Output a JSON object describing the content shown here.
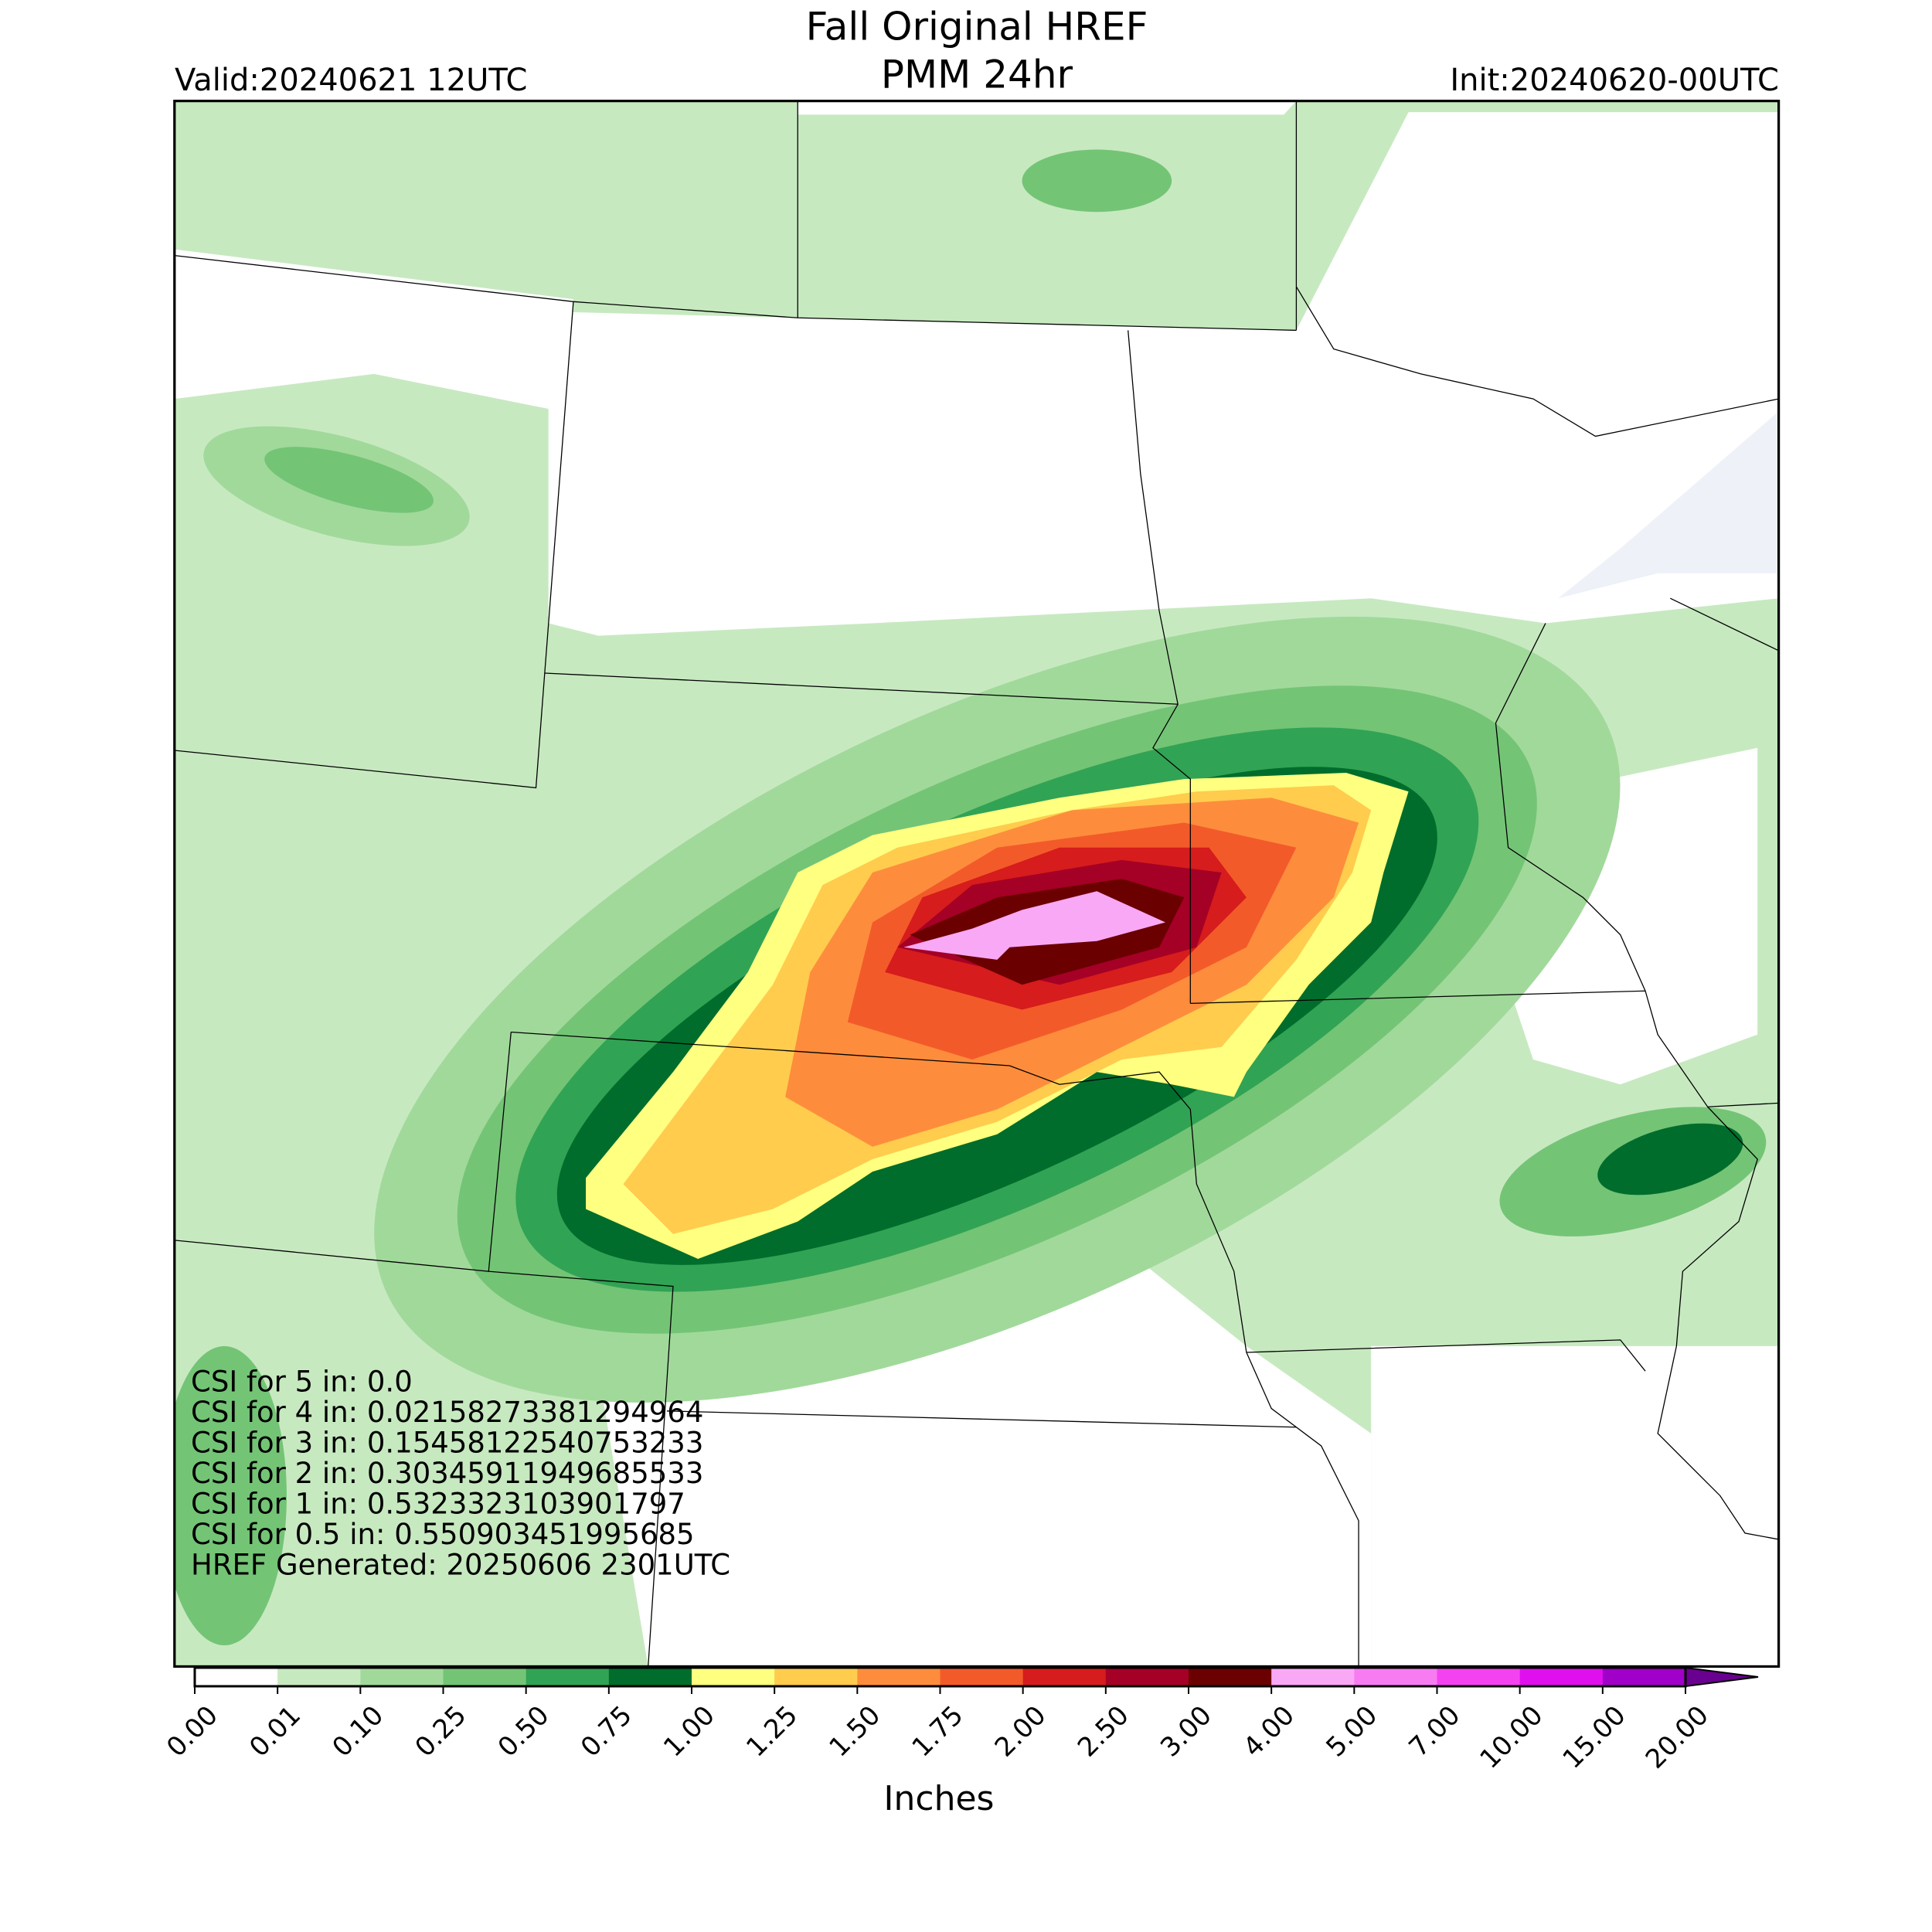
{
  "title": "Fall Original HREF",
  "subtitle": "PMM 24hr",
  "valid": "Valid:20240621 12UTC",
  "init": "Init:20240620-00UTC",
  "annotations": [
    "CSI for 5 in: 0.0",
    "CSI for 4 in: 0.02158273381294964",
    "CSI for 3 in: 0.15458122540753233",
    "CSI for 2 in: 0.30345911949685533",
    "CSI for 1 in: 0.5323323103901797",
    "CSI for 0.5 in: 0.550903451995685",
    "HREF Generated: 20250606 2301UTC"
  ],
  "colorbar": {
    "label": "Inches",
    "ticks": [
      {
        "value": 0,
        "label": "0.00"
      },
      {
        "value": 0.01,
        "label": "0.01"
      },
      {
        "value": 0.1,
        "label": "0.10"
      },
      {
        "value": 0.25,
        "label": "0.25"
      },
      {
        "value": 0.5,
        "label": "0.50"
      },
      {
        "value": 0.75,
        "label": "0.75"
      },
      {
        "value": 1,
        "label": "1.00"
      },
      {
        "value": 1.25,
        "label": "1.25"
      },
      {
        "value": 1.5,
        "label": "1.50"
      },
      {
        "value": 1.75,
        "label": "1.75"
      },
      {
        "value": 2,
        "label": "2.00"
      },
      {
        "value": 2.5,
        "label": "2.50"
      },
      {
        "value": 3,
        "label": "3.00"
      },
      {
        "value": 4,
        "label": "4.00"
      },
      {
        "value": 5,
        "label": "5.00"
      },
      {
        "value": 7,
        "label": "7.00"
      },
      {
        "value": 10,
        "label": "10.00"
      },
      {
        "value": 15,
        "label": "15.00"
      },
      {
        "value": 20,
        "label": "20.00"
      }
    ],
    "colors": [
      "#ffffff",
      "#c7e9c0",
      "#a1d99b",
      "#74c476",
      "#31a354",
      "#006d2c",
      "#ffff80",
      "#ffcc4d",
      "#fd8d3c",
      "#f35a2a",
      "#d61c1c",
      "#a50026",
      "#6b0000",
      "#f9a8f6",
      "#f77cf2",
      "#f442f0",
      "#e010ee",
      "#a000c8"
    ],
    "extend_color": "#6a0090"
  }
}
